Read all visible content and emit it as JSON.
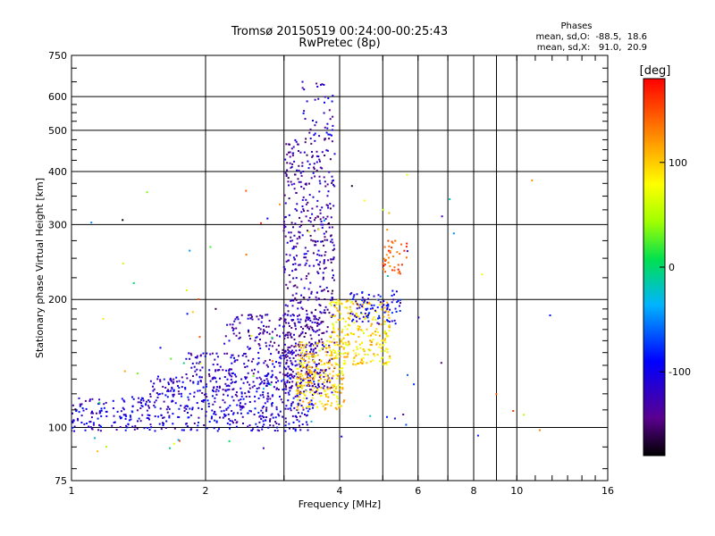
{
  "chart_data": {
    "type": "scatter",
    "title": "Tromsø 20150519 00:24:00-00:25:43",
    "subtitle": "RwPretec (8p)",
    "xlabel": "Frequency [MHz]",
    "ylabel": "Stationary phase Virtual Height [km]",
    "x_scale": "log",
    "y_scale": "log",
    "xlim": [
      1,
      16
    ],
    "ylim": [
      75,
      750
    ],
    "x_ticks": [
      1,
      2,
      4,
      6,
      8,
      10,
      16
    ],
    "x_minor_ticks": [
      3,
      5,
      7,
      9
    ],
    "y_ticks": [
      75,
      100,
      200,
      300,
      400,
      500,
      600,
      750
    ],
    "grid": true,
    "stats": {
      "heading": "Phases",
      "line_o": "mean, sd,O:  -88.5,  18.6",
      "line_x": "mean, sd,X:   91.0,  20.9"
    },
    "colorbar": {
      "label": "[deg]",
      "range": [
        -180,
        180
      ],
      "ticks": [
        100,
        0,
        -100
      ],
      "colormap": "rainbow"
    },
    "clusters": [
      {
        "x0": 1.0,
        "x1": 3.5,
        "y0": 98,
        "y1": 118,
        "phase": -108,
        "n": 420
      },
      {
        "x0": 1.5,
        "x1": 3.6,
        "y0": 118,
        "y1": 132,
        "phase": -112,
        "n": 240
      },
      {
        "x0": 1.8,
        "x1": 3.6,
        "y0": 132,
        "y1": 150,
        "phase": -118,
        "n": 160
      },
      {
        "x0": 2.2,
        "x1": 3.6,
        "y0": 150,
        "y1": 185,
        "phase": -125,
        "n": 150
      },
      {
        "x0": 3.0,
        "x1": 3.9,
        "y0": 120,
        "y1": 480,
        "phase": -130,
        "n": 560
      },
      {
        "x0": 3.3,
        "x1": 3.9,
        "y0": 480,
        "y1": 660,
        "phase": -115,
        "n": 40
      },
      {
        "x0": 3.2,
        "x1": 4.1,
        "y0": 110,
        "y1": 160,
        "phase": 95,
        "n": 260
      },
      {
        "x0": 3.8,
        "x1": 5.2,
        "y0": 140,
        "y1": 200,
        "phase": 92,
        "n": 260
      },
      {
        "x0": 4.2,
        "x1": 5.5,
        "y0": 175,
        "y1": 210,
        "phase": -100,
        "n": 90
      },
      {
        "x0": 5.0,
        "x1": 5.7,
        "y0": 230,
        "y1": 280,
        "phase": 150,
        "n": 40
      },
      {
        "x0": 1.1,
        "x1": 12.0,
        "y0": 85,
        "y1": 400,
        "phase": 0,
        "n": 80
      }
    ]
  }
}
